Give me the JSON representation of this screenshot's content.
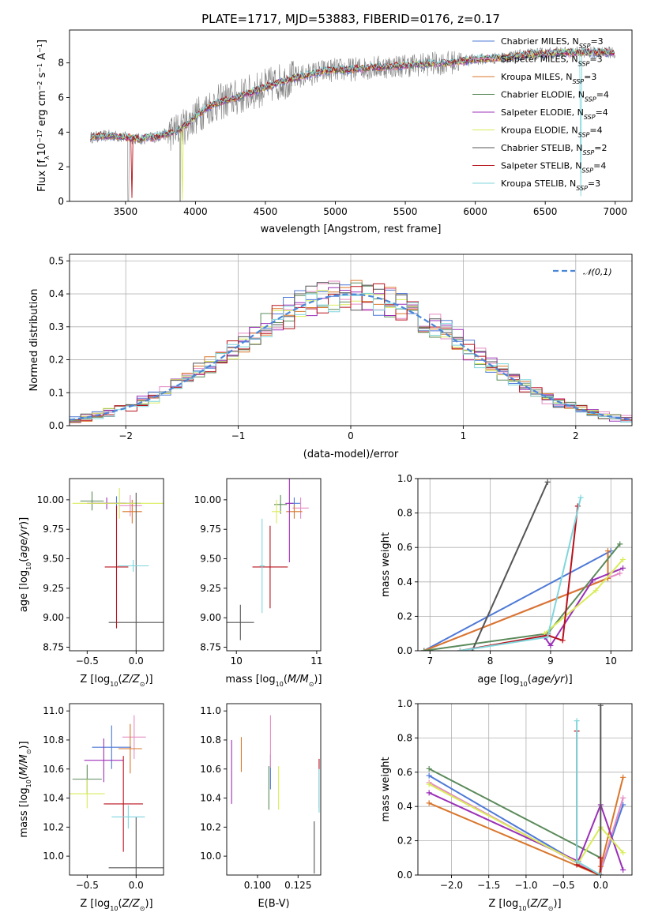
{
  "figure_title": "PLATE=1717, MJD=53883, FIBERID=0176, z=0.17",
  "series": [
    {
      "name": "Chabrier MILES",
      "nssp": "3",
      "color": "#4e79d7"
    },
    {
      "name": "Salpeter MILES",
      "nssp": "3",
      "color": "#e58bc3"
    },
    {
      "name": "Kroupa MILES",
      "nssp": "3",
      "color": "#d9762b"
    },
    {
      "name": "Chabrier ELODIE",
      "nssp": "4",
      "color": "#5b8a5b"
    },
    {
      "name": "Salpeter ELODIE",
      "nssp": "4",
      "color": "#9b30b8"
    },
    {
      "name": "Kroupa ELODIE",
      "nssp": "4",
      "color": "#d9ec5a"
    },
    {
      "name": "Chabrier STELIB",
      "nssp": "2",
      "color": "#555555"
    },
    {
      "name": "Salpeter STELIB",
      "nssp": "4",
      "color": "#b8121b"
    },
    {
      "name": "Kroupa STELIB",
      "nssp": "3",
      "color": "#7fd6dd"
    }
  ],
  "chart_data": [
    {
      "id": "spectrum",
      "type": "line",
      "xlabel": "wavelength [Angstrom, rest frame]",
      "ylabel": "Flux [f_λ10^-17 erg cm^-2 s^-1 A^-1]",
      "xlim": [
        3100,
        7120
      ],
      "ylim": [
        0,
        9.9
      ],
      "xticks": [
        3500,
        4000,
        4500,
        5000,
        5500,
        6000,
        6500,
        7000
      ],
      "yticks": [
        0,
        2,
        4,
        6,
        8
      ],
      "x_range": [
        3250,
        7000
      ],
      "continuum": [
        [
          3250,
          3.7
        ],
        [
          3400,
          3.8
        ],
        [
          3500,
          3.7
        ],
        [
          3600,
          3.6
        ],
        [
          3700,
          3.7
        ],
        [
          3800,
          3.9
        ],
        [
          3900,
          4.2
        ],
        [
          4000,
          4.9
        ],
        [
          4100,
          5.5
        ],
        [
          4200,
          5.8
        ],
        [
          4300,
          6.0
        ],
        [
          4400,
          6.3
        ],
        [
          4500,
          6.6
        ],
        [
          4600,
          6.9
        ],
        [
          4700,
          7.1
        ],
        [
          4800,
          7.3
        ],
        [
          4900,
          7.5
        ],
        [
          5000,
          7.6
        ],
        [
          5100,
          7.6
        ],
        [
          5200,
          7.7
        ],
        [
          5400,
          7.8
        ],
        [
          5600,
          7.9
        ],
        [
          5800,
          8.0
        ],
        [
          6000,
          8.2
        ],
        [
          6200,
          8.3
        ],
        [
          6400,
          8.5
        ],
        [
          6600,
          8.6
        ],
        [
          6800,
          8.6
        ],
        [
          7000,
          8.6
        ]
      ],
      "grid": false,
      "legend": "upper-right"
    },
    {
      "id": "residuals",
      "type": "histogram",
      "xlabel": "(data-model)/error",
      "ylabel": "Normed distribution",
      "xlim": [
        -2.5,
        2.5
      ],
      "ylim": [
        0,
        0.52
      ],
      "xticks": [
        -2,
        -1,
        0,
        1,
        2
      ],
      "yticks": [
        0.0,
        0.1,
        0.2,
        0.3,
        0.4,
        0.5
      ],
      "bin_width": 0.1,
      "reference": {
        "name": "𝒩(0,1)",
        "color": "#4a86d8",
        "style": "dashed"
      },
      "grid": true,
      "legend": "upper-right"
    },
    {
      "id": "age_vs_Z",
      "type": "errorbar",
      "xlabel": "Z [log10(Z/Z⊙)]",
      "ylabel": "age [log10(age/yr)]",
      "xlim": [
        -0.68,
        0.28
      ],
      "ylim": [
        8.72,
        10.18
      ],
      "xticks": [
        -0.5,
        0.0
      ],
      "yticks": [
        8.75,
        9.0,
        9.25,
        9.5,
        9.75,
        10.0
      ],
      "points": [
        {
          "s": 0,
          "x": -0.2,
          "y": 9.97,
          "xe": 0.25,
          "ye": 0.06
        },
        {
          "s": 1,
          "x": -0.06,
          "y": 9.95,
          "xe": 0.12,
          "ye": 0.09
        },
        {
          "s": 2,
          "x": -0.04,
          "y": 9.9,
          "xe": 0.1,
          "ye": 0.1
        },
        {
          "s": 3,
          "x": -0.45,
          "y": 9.99,
          "xe": 0.12,
          "ye": 0.08
        },
        {
          "s": 4,
          "x": -0.3,
          "y": 9.97,
          "xe": 0.2,
          "ye": 0.05
        },
        {
          "s": 5,
          "x": -0.17,
          "y": 9.97,
          "xe": 0.48,
          "ye": 0.13
        },
        {
          "s": 6,
          "x": 0.0,
          "y": 8.96,
          "xe": 0.28,
          "ye": 1.1
        },
        {
          "s": 7,
          "x": -0.2,
          "y": 9.43,
          "xe": 0.12,
          "ye": 0.52
        },
        {
          "s": 8,
          "x": -0.03,
          "y": 9.44,
          "xe": 0.16,
          "ye": 0.05
        }
      ]
    },
    {
      "id": "age_vs_mass",
      "type": "errorbar",
      "xlabel": "mass [log10(M/M⊙)]",
      "ylabel": "",
      "xlim": [
        9.88,
        11.05
      ],
      "ylim": [
        8.72,
        10.18
      ],
      "xticks": [
        10,
        11
      ],
      "yticks": [
        8.75,
        9.0,
        9.25,
        9.5,
        9.75,
        10.0
      ],
      "points": [
        {
          "s": 0,
          "x": 10.72,
          "y": 9.97,
          "xe": 0.08,
          "ye": 0.05
        },
        {
          "s": 1,
          "x": 10.8,
          "y": 9.93,
          "xe": 0.1,
          "ye": 0.09
        },
        {
          "s": 2,
          "x": 10.72,
          "y": 9.9,
          "xe": 0.1,
          "ye": 0.06
        },
        {
          "s": 3,
          "x": 10.55,
          "y": 9.96,
          "xe": 0.08,
          "ye": 0.08
        },
        {
          "s": 4,
          "x": 10.66,
          "y": 9.97,
          "xe": 0.05,
          "ye": 0.5
        },
        {
          "s": 5,
          "x": 10.5,
          "y": 9.9,
          "xe": 0.06,
          "ye": 0.1
        },
        {
          "s": 6,
          "x": 10.05,
          "y": 8.96,
          "xe": 0.17,
          "ye": 0.15
        },
        {
          "s": 7,
          "x": 10.42,
          "y": 9.43,
          "xe": 0.22,
          "ye": 0.35
        },
        {
          "s": 8,
          "x": 10.32,
          "y": 9.44,
          "xe": 0.03,
          "ye": 0.4
        }
      ]
    },
    {
      "id": "weight_vs_age",
      "type": "line",
      "xlabel": "age [log10(age/yr)]",
      "ylabel": "mass weight",
      "xlim": [
        6.8,
        10.35
      ],
      "ylim": [
        0,
        1
      ],
      "xticks": [
        7,
        8,
        9,
        10
      ],
      "yticks": [
        0.0,
        0.2,
        0.4,
        0.6,
        0.8,
        1.0
      ],
      "lines": [
        {
          "s": 0,
          "x": [
            6.9,
            10.0
          ],
          "y": [
            0.0,
            0.58
          ]
        },
        {
          "s": 1,
          "x": [
            6.9,
            10.15
          ],
          "y": [
            0.0,
            0.45
          ]
        },
        {
          "s": 2,
          "x": [
            6.9,
            9.95
          ],
          "y": [
            0.0,
            0.42
          ]
        },
        {
          "s": 2,
          "x": [
            9.95,
            9.95
          ],
          "y": [
            0.42,
            0.58
          ]
        },
        {
          "s": 3,
          "x": [
            6.9,
            8.95,
            10.15
          ],
          "y": [
            0.0,
            0.1,
            0.62
          ]
        },
        {
          "s": 4,
          "x": [
            8.9,
            9.0,
            9.7,
            10.2
          ],
          "y": [
            0.08,
            0.03,
            0.41,
            0.48
          ]
        },
        {
          "s": 5,
          "x": [
            8.9,
            9.75,
            10.2
          ],
          "y": [
            0.1,
            0.35,
            0.53
          ]
        },
        {
          "s": 6,
          "x": [
            7.7,
            8.95
          ],
          "y": [
            0.0,
            0.98
          ]
        },
        {
          "s": 7,
          "x": [
            7.5,
            8.95,
            9.2,
            9.45
          ],
          "y": [
            0.0,
            0.09,
            0.06,
            0.84
          ]
        },
        {
          "s": 8,
          "x": [
            7.5,
            8.95,
            9.5
          ],
          "y": [
            0.0,
            0.08,
            0.89
          ]
        }
      ],
      "grid": true
    },
    {
      "id": "mass_vs_Z",
      "type": "errorbar",
      "xlabel": "Z [log10(Z/Z⊙)]",
      "ylabel": "mass [log10(M/M⊙)]",
      "xlim": [
        -0.68,
        0.28
      ],
      "ylim": [
        9.87,
        11.05
      ],
      "xticks": [
        -0.5,
        0.0
      ],
      "yticks": [
        10.0,
        10.2,
        10.4,
        10.6,
        10.8,
        11.0
      ],
      "points": [
        {
          "s": 0,
          "x": -0.25,
          "y": 10.75,
          "xe": 0.2,
          "ye": 0.15
        },
        {
          "s": 1,
          "x": -0.02,
          "y": 10.82,
          "xe": 0.12,
          "ye": 0.15
        },
        {
          "s": 2,
          "x": -0.06,
          "y": 10.74,
          "xe": 0.12,
          "ye": 0.17
        },
        {
          "s": 3,
          "x": -0.5,
          "y": 10.53,
          "xe": 0.15,
          "ye": 0.1
        },
        {
          "s": 4,
          "x": -0.33,
          "y": 10.66,
          "xe": 0.2,
          "ye": 0.15
        },
        {
          "s": 5,
          "x": -0.5,
          "y": 10.43,
          "xe": 0.18,
          "ye": 0.1
        },
        {
          "s": 6,
          "x": 0.0,
          "y": 9.92,
          "xe": 0.28,
          "ye": 0.35
        },
        {
          "s": 7,
          "x": -0.13,
          "y": 10.36,
          "xe": 0.2,
          "ye": 0.33
        },
        {
          "s": 8,
          "x": -0.08,
          "y": 10.27,
          "xe": 0.17,
          "ye": 0.08
        }
      ]
    },
    {
      "id": "mass_vs_ebv",
      "type": "errorbar",
      "xlabel": "E(B-V)",
      "ylabel": "",
      "xlim": [
        0.081,
        0.139
      ],
      "ylim": [
        9.87,
        11.05
      ],
      "xticks": [
        0.1,
        0.125
      ],
      "yticks": [
        10.0,
        10.2,
        10.4,
        10.6,
        10.8,
        11.0
      ],
      "points": [
        {
          "s": 0,
          "x": 0.108,
          "y": 10.58,
          "xe": 0.0,
          "ye": 0.12
        },
        {
          "s": 1,
          "x": 0.108,
          "y": 10.79,
          "xe": 0.0,
          "ye": 0.18
        },
        {
          "s": 2,
          "x": 0.09,
          "y": 10.7,
          "xe": 0.0,
          "ye": 0.12
        },
        {
          "s": 3,
          "x": 0.107,
          "y": 10.47,
          "xe": 0.0,
          "ye": 0.15
        },
        {
          "s": 4,
          "x": 0.084,
          "y": 10.58,
          "xe": 0.0,
          "ye": 0.22
        },
        {
          "s": 5,
          "x": 0.113,
          "y": 10.47,
          "xe": 0.0,
          "ye": 0.15
        },
        {
          "s": 6,
          "x": 0.135,
          "y": 10.06,
          "xe": 0.0,
          "ye": 0.18
        },
        {
          "s": 7,
          "x": 0.138,
          "y": 10.5,
          "xe": 0.0,
          "ye": 0.17
        },
        {
          "s": 8,
          "x": 0.138,
          "y": 10.45,
          "xe": 0.0,
          "ye": 0.15
        }
      ]
    },
    {
      "id": "weight_vs_Z",
      "type": "line",
      "xlabel": "Z [log10(Z/Z⊙)]",
      "ylabel": "mass weight",
      "xlim": [
        -2.45,
        0.42
      ],
      "ylim": [
        0,
        1
      ],
      "xticks": [
        -2.0,
        -1.5,
        -1.0,
        -0.5,
        0.0
      ],
      "yticks": [
        0.0,
        0.2,
        0.4,
        0.6,
        0.8,
        1.0
      ],
      "lines": [
        {
          "s": 0,
          "x": [
            -2.3,
            -0.02,
            0.3
          ],
          "y": [
            0.58,
            0.0,
            0.41
          ]
        },
        {
          "s": 1,
          "x": [
            -2.3,
            -0.02,
            0.3
          ],
          "y": [
            0.54,
            0.0,
            0.45
          ]
        },
        {
          "s": 2,
          "x": [
            -2.3,
            -0.02,
            0.0,
            0.3
          ],
          "y": [
            0.42,
            0.0,
            0.05,
            0.57
          ]
        },
        {
          "s": 3,
          "x": [
            -2.3,
            0.0
          ],
          "y": [
            0.62,
            0.1
          ]
        },
        {
          "s": 4,
          "x": [
            -2.3,
            -0.3,
            0.0,
            0.3
          ],
          "y": [
            0.48,
            0.08,
            0.41,
            0.03
          ]
        },
        {
          "s": 5,
          "x": [
            -2.3,
            -0.3,
            0.0,
            0.3
          ],
          "y": [
            0.53,
            0.07,
            0.28,
            0.13
          ]
        },
        {
          "s": 6,
          "x": [
            0.0,
            0.0
          ],
          "y": [
            0.0,
            0.99
          ]
        },
        {
          "s": 7,
          "x": [
            -0.32,
            -0.32,
            0.0,
            0.0
          ],
          "y": [
            0.84,
            0.06,
            0.0,
            0.1
          ]
        },
        {
          "s": 8,
          "x": [
            -0.32,
            -0.32,
            0.0
          ],
          "y": [
            0.9,
            0.08,
            0.0
          ]
        }
      ],
      "grid": true
    }
  ]
}
